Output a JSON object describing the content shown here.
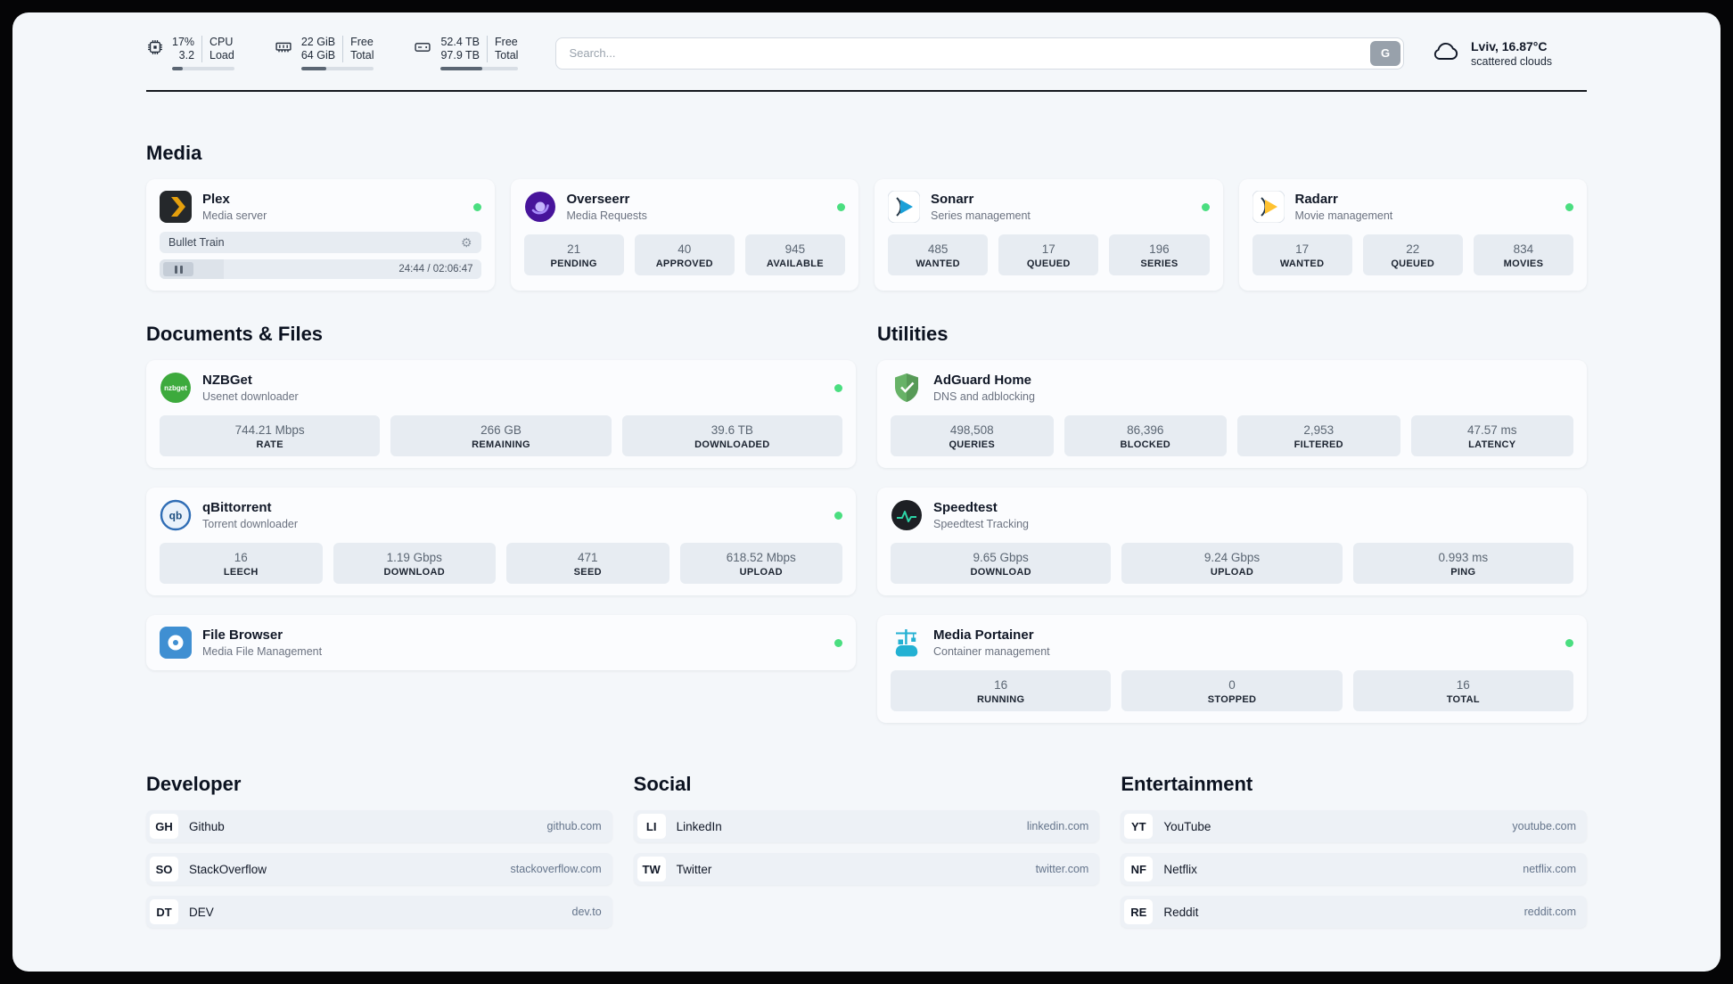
{
  "topbar": {
    "cpu": {
      "value1": "17%",
      "value2": "3.2",
      "label1": "CPU",
      "label2": "Load",
      "bar_percent": 17
    },
    "ram": {
      "value1": "22 GiB",
      "value2": "64 GiB",
      "label1": "Free",
      "label2": "Total",
      "bar_percent": 34
    },
    "disk": {
      "value1": "52.4 TB",
      "value2": "97.9 TB",
      "label1": "Free",
      "label2": "Total",
      "bar_percent": 53
    },
    "search": {
      "placeholder": "Search...",
      "provider": "G"
    },
    "weather": {
      "location": "Lviv, 16.87°C",
      "condition": "scattered clouds"
    }
  },
  "icons": {
    "settings": "⚙",
    "status_dot": "online-green"
  },
  "colors": {
    "status_online": "#4ade80",
    "plex_accent": "#e5a00d",
    "adguard_green": "#67b267",
    "portainer_teal": "#23b1d3"
  },
  "sections": {
    "media": {
      "title": "Media",
      "items": [
        {
          "name": "Plex",
          "subtitle": "Media server",
          "status": "online",
          "now_playing": {
            "title": "Bullet Train",
            "time": "24:44 / 02:06:47"
          },
          "stats": []
        },
        {
          "name": "Overseerr",
          "subtitle": "Media Requests",
          "status": "online",
          "stats": [
            {
              "value": "21",
              "label": "PENDING"
            },
            {
              "value": "40",
              "label": "APPROVED"
            },
            {
              "value": "945",
              "label": "AVAILABLE"
            }
          ]
        },
        {
          "name": "Sonarr",
          "subtitle": "Series management",
          "status": "online",
          "stats": [
            {
              "value": "485",
              "label": "WANTED"
            },
            {
              "value": "17",
              "label": "QUEUED"
            },
            {
              "value": "196",
              "label": "SERIES"
            }
          ]
        },
        {
          "name": "Radarr",
          "subtitle": "Movie management",
          "status": "online",
          "stats": [
            {
              "value": "17",
              "label": "WANTED"
            },
            {
              "value": "22",
              "label": "QUEUED"
            },
            {
              "value": "834",
              "label": "MOVIES"
            }
          ]
        }
      ]
    },
    "documents": {
      "title": "Documents & Files",
      "items": [
        {
          "name": "NZBGet",
          "subtitle": "Usenet downloader",
          "status": "online",
          "stats": [
            {
              "value": "744.21 Mbps",
              "label": "RATE"
            },
            {
              "value": "266 GB",
              "label": "REMAINING"
            },
            {
              "value": "39.6 TB",
              "label": "DOWNLOADED"
            }
          ]
        },
        {
          "name": "qBittorrent",
          "subtitle": "Torrent downloader",
          "status": "online",
          "stats": [
            {
              "value": "16",
              "label": "LEECH"
            },
            {
              "value": "1.19 Gbps",
              "label": "DOWNLOAD"
            },
            {
              "value": "471",
              "label": "SEED"
            },
            {
              "value": "618.52 Mbps",
              "label": "UPLOAD"
            }
          ]
        },
        {
          "name": "File Browser",
          "subtitle": "Media File Management",
          "status": "online",
          "stats": []
        }
      ]
    },
    "utilities": {
      "title": "Utilities",
      "items": [
        {
          "name": "AdGuard Home",
          "subtitle": "DNS and adblocking",
          "stats": [
            {
              "value": "498,508",
              "label": "QUERIES"
            },
            {
              "value": "86,396",
              "label": "BLOCKED"
            },
            {
              "value": "2,953",
              "label": "FILTERED"
            },
            {
              "value": "47.57 ms",
              "label": "LATENCY"
            }
          ]
        },
        {
          "name": "Speedtest",
          "subtitle": "Speedtest Tracking",
          "stats": [
            {
              "value": "9.65 Gbps",
              "label": "DOWNLOAD"
            },
            {
              "value": "9.24 Gbps",
              "label": "UPLOAD"
            },
            {
              "value": "0.993 ms",
              "label": "PING"
            }
          ]
        },
        {
          "name": "Media Portainer",
          "subtitle": "Container management",
          "status": "online",
          "stats": [
            {
              "value": "16",
              "label": "RUNNING"
            },
            {
              "value": "0",
              "label": "STOPPED"
            },
            {
              "value": "16",
              "label": "TOTAL"
            }
          ]
        }
      ]
    },
    "developer": {
      "title": "Developer",
      "links": [
        {
          "abbr": "GH",
          "name": "Github",
          "domain": "github.com"
        },
        {
          "abbr": "SO",
          "name": "StackOverflow",
          "domain": "stackoverflow.com"
        },
        {
          "abbr": "DT",
          "name": "DEV",
          "domain": "dev.to"
        }
      ]
    },
    "social": {
      "title": "Social",
      "links": [
        {
          "abbr": "LI",
          "name": "LinkedIn",
          "domain": "linkedin.com"
        },
        {
          "abbr": "TW",
          "name": "Twitter",
          "domain": "twitter.com"
        }
      ]
    },
    "entertainment": {
      "title": "Entertainment",
      "links": [
        {
          "abbr": "YT",
          "name": "YouTube",
          "domain": "youtube.com"
        },
        {
          "abbr": "NF",
          "name": "Netflix",
          "domain": "netflix.com"
        },
        {
          "abbr": "RE",
          "name": "Reddit",
          "domain": "reddit.com"
        }
      ]
    }
  }
}
